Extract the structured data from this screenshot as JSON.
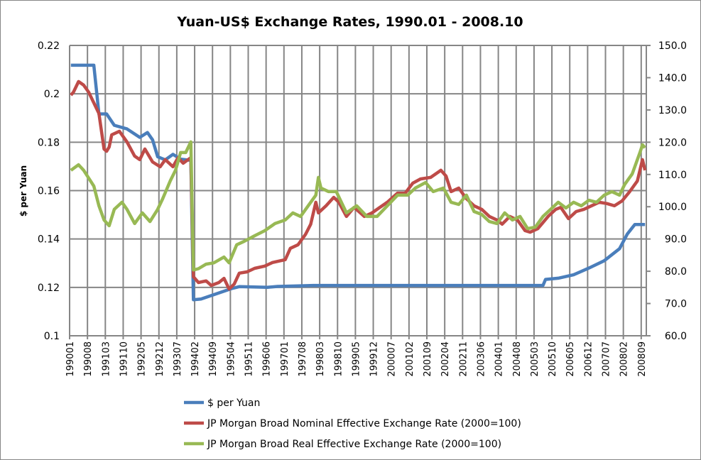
{
  "chart_data": {
    "type": "line",
    "title": "Yuan-US$ Exchange Rates, 1990.01 - 2008.10",
    "xlabel": "",
    "ylabel": "$ per Yuan",
    "y2label": "",
    "ylim": [
      0.1,
      0.22
    ],
    "y2lim": [
      60,
      150
    ],
    "yticks": [
      "0.1",
      "0.12",
      "0.14",
      "0.16",
      "0.18",
      "0.2",
      "0.22"
    ],
    "y2ticks": [
      "60.0",
      "70.0",
      "80.0",
      "90.0",
      "100.0",
      "110.0",
      "120.0",
      "130.0",
      "140.0",
      "150.0"
    ],
    "x_start": "1990.01",
    "x_end": "2008.10",
    "xticks": [
      "199001",
      "199008",
      "199103",
      "199110",
      "199205",
      "199212",
      "199307",
      "199402",
      "199409",
      "199504",
      "199511",
      "199606",
      "199701",
      "199708",
      "199803",
      "199810",
      "199905",
      "199912",
      "200007",
      "200102",
      "200109",
      "200204",
      "200211",
      "200306",
      "200401",
      "200408",
      "200503",
      "200510",
      "200605",
      "200612",
      "200707",
      "200802",
      "200809"
    ],
    "grid": true,
    "legend_position": "bottom",
    "series": [
      {
        "name": "$ per Yuan",
        "axis": "left",
        "color": "#4a7ebb",
        "points": [
          [
            "1990.01",
            0.2118
          ],
          [
            "1990.10",
            0.2118
          ],
          [
            "1990.12",
            0.1917
          ],
          [
            "1991.03",
            0.1917
          ],
          [
            "1991.06",
            0.187
          ],
          [
            "1991.11",
            0.1855
          ],
          [
            "1992.04",
            0.182
          ],
          [
            "1992.07",
            0.184
          ],
          [
            "1992.09",
            0.181
          ],
          [
            "1992.11",
            0.174
          ],
          [
            "1993.02",
            0.1727
          ],
          [
            "1993.05",
            0.175
          ],
          [
            "1993.08",
            0.173
          ],
          [
            "1993.12",
            0.1725
          ],
          [
            "1994.01",
            0.1149
          ],
          [
            "1994.04",
            0.1152
          ],
          [
            "1994.09",
            0.117
          ],
          [
            "1995.04",
            0.1195
          ],
          [
            "1995.07",
            0.1203
          ],
          [
            "1996.06",
            0.12
          ],
          [
            "1996.10",
            0.1204
          ],
          [
            "1997.06",
            0.1206
          ],
          [
            "1997.12",
            0.1208
          ],
          [
            "2005.06",
            0.1208
          ],
          [
            "2005.07",
            0.1233
          ],
          [
            "2005.12",
            0.1238
          ],
          [
            "2006.06",
            0.1252
          ],
          [
            "2006.12",
            0.128
          ],
          [
            "2007.06",
            0.131
          ],
          [
            "2007.12",
            0.136
          ],
          [
            "2008.03",
            0.142
          ],
          [
            "2008.06",
            0.146
          ],
          [
            "2008.10",
            0.146
          ]
        ]
      },
      {
        "name": "JP Morgan Broad Nominal Effective Exchange Rate (2000=100)",
        "axis": "right",
        "color": "#be4b48",
        "points": [
          [
            "1990.01",
            134.6
          ],
          [
            "1990.02",
            135.5
          ],
          [
            "1990.04",
            138.8
          ],
          [
            "1990.06",
            137.7
          ],
          [
            "1990.08",
            135.5
          ],
          [
            "1990.10",
            132.2
          ],
          [
            "1990.12",
            128.9
          ],
          [
            "1991.02",
            117.9
          ],
          [
            "1991.03",
            117.2
          ],
          [
            "1991.04",
            118.5
          ],
          [
            "1991.05",
            122.3
          ],
          [
            "1991.08",
            123.4
          ],
          [
            "1991.11",
            120.1
          ],
          [
            "1992.02",
            115.7
          ],
          [
            "1992.04",
            114.6
          ],
          [
            "1992.06",
            117.9
          ],
          [
            "1992.09",
            113.9
          ],
          [
            "1992.12",
            112.4
          ],
          [
            "1993.02",
            114.6
          ],
          [
            "1993.05",
            112.4
          ],
          [
            "1993.07",
            115.2
          ],
          [
            "1993.09",
            113.5
          ],
          [
            "1993.12",
            115.2
          ],
          [
            "1994.01",
            78.3
          ],
          [
            "1994.03",
            76.5
          ],
          [
            "1994.06",
            77.0
          ],
          [
            "1994.08",
            75.6
          ],
          [
            "1994.11",
            76.5
          ],
          [
            "1995.01",
            77.8
          ],
          [
            "1995.03",
            74.5
          ],
          [
            "1995.05",
            76.0
          ],
          [
            "1995.07",
            79.4
          ],
          [
            "1995.10",
            79.8
          ],
          [
            "1996.01",
            80.9
          ],
          [
            "1996.05",
            81.6
          ],
          [
            "1996.08",
            82.7
          ],
          [
            "1997.01",
            83.6
          ],
          [
            "1997.03",
            87.1
          ],
          [
            "1997.06",
            88.2
          ],
          [
            "1997.09",
            91.5
          ],
          [
            "1997.11",
            94.6
          ],
          [
            "1998.01",
            101.4
          ],
          [
            "1998.02",
            98.1
          ],
          [
            "1998.05",
            100.3
          ],
          [
            "1998.08",
            102.9
          ],
          [
            "1998.10",
            101.4
          ],
          [
            "1999.01",
            97.0
          ],
          [
            "1999.04",
            99.8
          ],
          [
            "1999.08",
            97.0
          ],
          [
            "1999.11",
            98.1
          ],
          [
            "2000.01",
            99.2
          ],
          [
            "2000.05",
            101.4
          ],
          [
            "2000.09",
            104.2
          ],
          [
            "2000.12",
            104.2
          ],
          [
            "2001.03",
            107.3
          ],
          [
            "2001.06",
            108.6
          ],
          [
            "2001.10",
            109.1
          ],
          [
            "2002.02",
            111.3
          ],
          [
            "2002.04",
            109.5
          ],
          [
            "2002.06",
            104.7
          ],
          [
            "2002.09",
            105.8
          ],
          [
            "2002.12",
            102.5
          ],
          [
            "2003.03",
            100.3
          ],
          [
            "2003.06",
            99.2
          ],
          [
            "2003.09",
            97.0
          ],
          [
            "2003.12",
            95.9
          ],
          [
            "2004.02",
            94.6
          ],
          [
            "2004.05",
            97.0
          ],
          [
            "2004.08",
            95.9
          ],
          [
            "2004.11",
            92.6
          ],
          [
            "2005.01",
            92.1
          ],
          [
            "2005.04",
            93.2
          ],
          [
            "2005.08",
            97.0
          ],
          [
            "2005.11",
            99.2
          ],
          [
            "2006.01",
            99.8
          ],
          [
            "2006.04",
            96.3
          ],
          [
            "2006.07",
            98.5
          ],
          [
            "2006.10",
            99.2
          ],
          [
            "2007.01",
            100.3
          ],
          [
            "2007.04",
            101.4
          ],
          [
            "2007.07",
            101.0
          ],
          [
            "2007.10",
            100.3
          ],
          [
            "2008.01",
            101.8
          ],
          [
            "2008.04",
            104.7
          ],
          [
            "2008.07",
            108.0
          ],
          [
            "2008.09",
            114.6
          ],
          [
            "2008.10",
            111.3
          ]
        ]
      },
      {
        "name": "JP Morgan Broad Real Effective Exchange Rate (2000=100)",
        "axis": "right",
        "color": "#98b954",
        "points": [
          [
            "1990.01",
            111.3
          ],
          [
            "1990.04",
            113.0
          ],
          [
            "1990.06",
            111.3
          ],
          [
            "1990.10",
            106.4
          ],
          [
            "1990.12",
            100.3
          ],
          [
            "1991.02",
            95.9
          ],
          [
            "1991.04",
            94.1
          ],
          [
            "1991.06",
            99.2
          ],
          [
            "1991.09",
            101.4
          ],
          [
            "1991.11",
            99.2
          ],
          [
            "1992.02",
            94.8
          ],
          [
            "1992.05",
            98.1
          ],
          [
            "1992.08",
            95.4
          ],
          [
            "1992.11",
            99.2
          ],
          [
            "1993.01",
            102.5
          ],
          [
            "1993.04",
            108.1
          ],
          [
            "1993.06",
            111.3
          ],
          [
            "1993.08",
            116.8
          ],
          [
            "1993.10",
            116.8
          ],
          [
            "1993.12",
            120.1
          ],
          [
            "1994.01",
            80.4
          ],
          [
            "1994.03",
            80.8
          ],
          [
            "1994.06",
            82.2
          ],
          [
            "1994.09",
            82.6
          ],
          [
            "1995.01",
            84.4
          ],
          [
            "1995.03",
            82.6
          ],
          [
            "1995.06",
            88.2
          ],
          [
            "1995.09",
            89.3
          ],
          [
            "1996.01",
            91.0
          ],
          [
            "1996.05",
            92.6
          ],
          [
            "1996.09",
            94.8
          ],
          [
            "1997.01",
            95.9
          ],
          [
            "1997.04",
            98.1
          ],
          [
            "1997.07",
            97.0
          ],
          [
            "1997.10",
            100.3
          ],
          [
            "1998.01",
            103.6
          ],
          [
            "1998.02",
            109.1
          ],
          [
            "1998.03",
            105.8
          ],
          [
            "1998.06",
            104.7
          ],
          [
            "1998.09",
            104.7
          ],
          [
            "1999.01",
            98.1
          ],
          [
            "1999.05",
            100.3
          ],
          [
            "1999.09",
            97.0
          ],
          [
            "2000.01",
            97.0
          ],
          [
            "2000.05",
            100.3
          ],
          [
            "2000.09",
            103.6
          ],
          [
            "2001.01",
            103.6
          ],
          [
            "2001.04",
            105.8
          ],
          [
            "2001.08",
            107.5
          ],
          [
            "2001.11",
            104.7
          ],
          [
            "2002.03",
            105.8
          ],
          [
            "2002.06",
            101.4
          ],
          [
            "2002.09",
            100.7
          ],
          [
            "2002.12",
            103.6
          ],
          [
            "2003.03",
            98.5
          ],
          [
            "2003.06",
            97.6
          ],
          [
            "2003.09",
            95.4
          ],
          [
            "2003.12",
            94.8
          ],
          [
            "2004.03",
            98.1
          ],
          [
            "2004.06",
            95.9
          ],
          [
            "2004.09",
            97.0
          ],
          [
            "2004.12",
            93.2
          ],
          [
            "2005.03",
            93.7
          ],
          [
            "2005.06",
            97.0
          ],
          [
            "2005.09",
            99.2
          ],
          [
            "2005.12",
            101.4
          ],
          [
            "2006.03",
            99.6
          ],
          [
            "2006.06",
            101.4
          ],
          [
            "2006.09",
            100.3
          ],
          [
            "2006.12",
            102.0
          ],
          [
            "2007.03",
            101.4
          ],
          [
            "2007.06",
            103.6
          ],
          [
            "2007.09",
            104.7
          ],
          [
            "2007.12",
            103.6
          ],
          [
            "2008.02",
            106.9
          ],
          [
            "2008.05",
            110.2
          ],
          [
            "2008.08",
            116.8
          ],
          [
            "2008.09",
            119.2
          ],
          [
            "2008.10",
            118.3
          ]
        ]
      }
    ]
  }
}
